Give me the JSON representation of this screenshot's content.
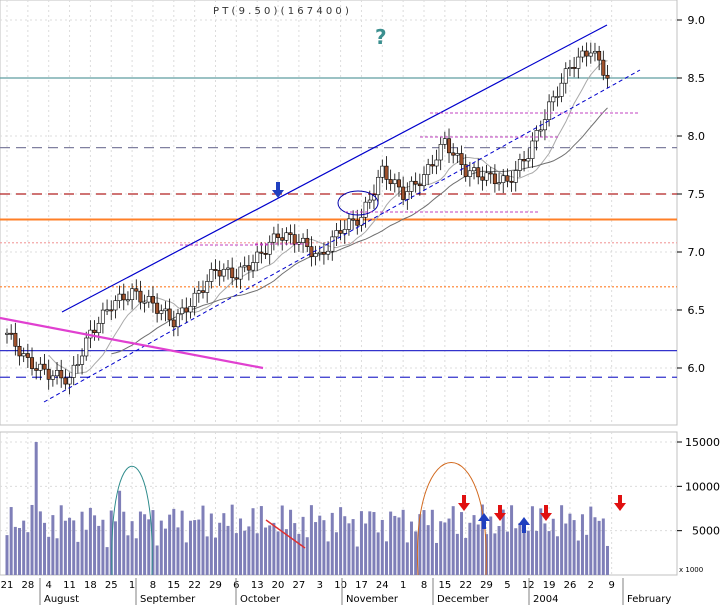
{
  "chart_data": {
    "type": "candlestick",
    "title_garbled": "P T ( 9 . 5 0 ) ( 1 6 7 4 0 0 )",
    "question_mark": "?",
    "price_axis": {
      "ylim": [
        5.6,
        9.15
      ],
      "ticks": [
        "6.0",
        "6.5",
        "7.0",
        "7.5",
        "8.0",
        "8.5",
        "9.0"
      ]
    },
    "volume_axis": {
      "ylim": [
        0,
        16000
      ],
      "ticks": [
        "5000",
        "10000",
        "15000"
      ],
      "unit": "x 1000"
    },
    "x_ticks_row1": [
      "21",
      "28",
      "4",
      "11",
      "18",
      "25",
      "1",
      "8",
      "15",
      "22",
      "29",
      "6",
      "13",
      "20",
      "27",
      "3",
      "10",
      "17",
      "24",
      "1",
      "8",
      "15",
      "22",
      "29",
      "5",
      "12",
      "19",
      "26",
      "2",
      "9"
    ],
    "x_months": [
      "August",
      "September",
      "October",
      "November",
      "December",
      "2004",
      "February"
    ],
    "horizontal_levels": [
      {
        "price": 8.5,
        "style": "solid",
        "color": "#5f9ea0"
      },
      {
        "price": 7.9,
        "style": "dashed",
        "color": "#8080a0"
      },
      {
        "price": 7.5,
        "style": "dashed",
        "color": "#b22222"
      },
      {
        "price": 7.28,
        "style": "solid",
        "color": "#ff7f27"
      },
      {
        "price": 7.08,
        "style": "dotted",
        "color": "#f4a6a6"
      },
      {
        "price": 6.7,
        "style": "dotted",
        "color": "#ff7f27"
      },
      {
        "price": 6.15,
        "style": "solid",
        "color": "#3333cc"
      },
      {
        "price": 5.92,
        "style": "dashed",
        "color": "#3333cc"
      }
    ],
    "weekly_closes": [
      6.3,
      6.05,
      5.95,
      5.9,
      6.3,
      6.55,
      6.65,
      6.55,
      6.4,
      6.6,
      6.85,
      6.8,
      6.95,
      7.15,
      7.1,
      6.95,
      7.2,
      7.3,
      7.7,
      7.5,
      7.65,
      7.95,
      7.7,
      7.65,
      7.6,
      7.85,
      8.25,
      8.6,
      8.75,
      8.45
    ],
    "colors": {
      "up_candle": "#ffffff",
      "down_candle": "#a0522d",
      "volume_bar": "#7f7fb8",
      "channel": "#0000cc",
      "trend_pink": "#e040d0"
    }
  }
}
